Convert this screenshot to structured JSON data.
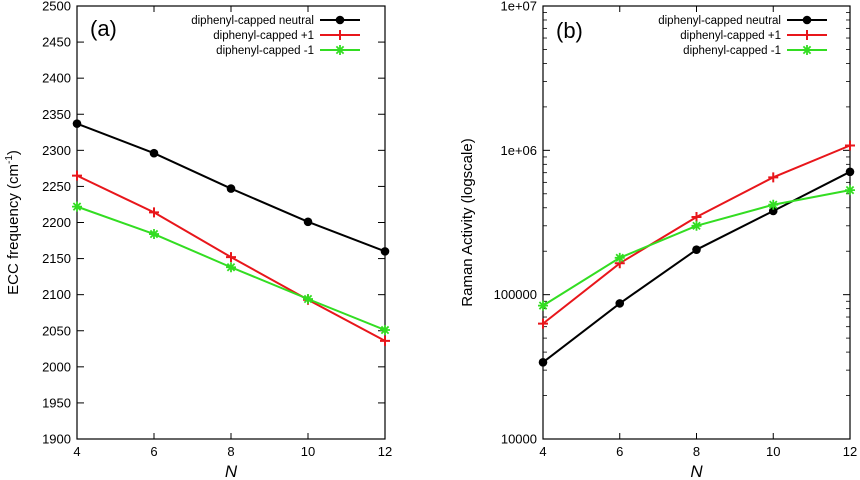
{
  "colors": {
    "neutral": "#000000",
    "plus1": "#e8161b",
    "minus1": "#33dd22",
    "axis": "#000000"
  },
  "chart_data": [
    {
      "type": "line",
      "panel_label": "(a)",
      "title": "",
      "xlabel": "N",
      "ylabel": "ECC frequency (cm",
      "ylabel_sup": "-1",
      "ylabel_close": ")",
      "xlim": [
        4,
        12
      ],
      "ylim": [
        1900,
        2500
      ],
      "xticks": [
        4,
        6,
        8,
        10,
        12
      ],
      "yticks": [
        1900,
        1950,
        2000,
        2050,
        2100,
        2150,
        2200,
        2250,
        2300,
        2350,
        2400,
        2450,
        2500
      ],
      "yscale": "linear",
      "x": [
        4,
        6,
        8,
        10,
        12
      ],
      "legend_position": "top-right",
      "series": [
        {
          "name": "diphenyl-capped neutral",
          "color_key": "neutral",
          "marker": "circle",
          "values": [
            2337,
            2296,
            2247,
            2201,
            2160
          ]
        },
        {
          "name": "diphenyl-capped +1",
          "color_key": "plus1",
          "marker": "plus",
          "values": [
            2265,
            2214,
            2152,
            2093,
            2036
          ]
        },
        {
          "name": "diphenyl-capped -1",
          "color_key": "minus1",
          "marker": "star",
          "values": [
            2222,
            2184,
            2138,
            2094,
            2051
          ]
        }
      ]
    },
    {
      "type": "line",
      "panel_label": "(b)",
      "title": "",
      "xlabel": "N",
      "ylabel": "Raman Activity (logscale)",
      "ylabel_sup": "",
      "ylabel_close": "",
      "xlim": [
        4,
        12
      ],
      "ylim": [
        10000,
        10000000
      ],
      "xticks": [
        4,
        6,
        8,
        10,
        12
      ],
      "yticks": [
        10000,
        100000,
        1000000,
        10000000
      ],
      "ytick_labels": [
        "10000",
        "100000",
        "1e+06",
        "1e+07"
      ],
      "yscale": "log",
      "x": [
        4,
        6,
        8,
        10,
        12
      ],
      "legend_position": "top-right",
      "series": [
        {
          "name": "diphenyl-capped neutral",
          "color_key": "neutral",
          "marker": "circle",
          "values": [
            34000,
            87000,
            205000,
            380000,
            710000
          ]
        },
        {
          "name": "diphenyl-capped +1",
          "color_key": "plus1",
          "marker": "plus",
          "values": [
            63000,
            165000,
            345000,
            650000,
            1080000
          ]
        },
        {
          "name": "diphenyl-capped -1",
          "color_key": "minus1",
          "marker": "star",
          "values": [
            84000,
            180000,
            300000,
            420000,
            530000
          ]
        }
      ]
    }
  ]
}
